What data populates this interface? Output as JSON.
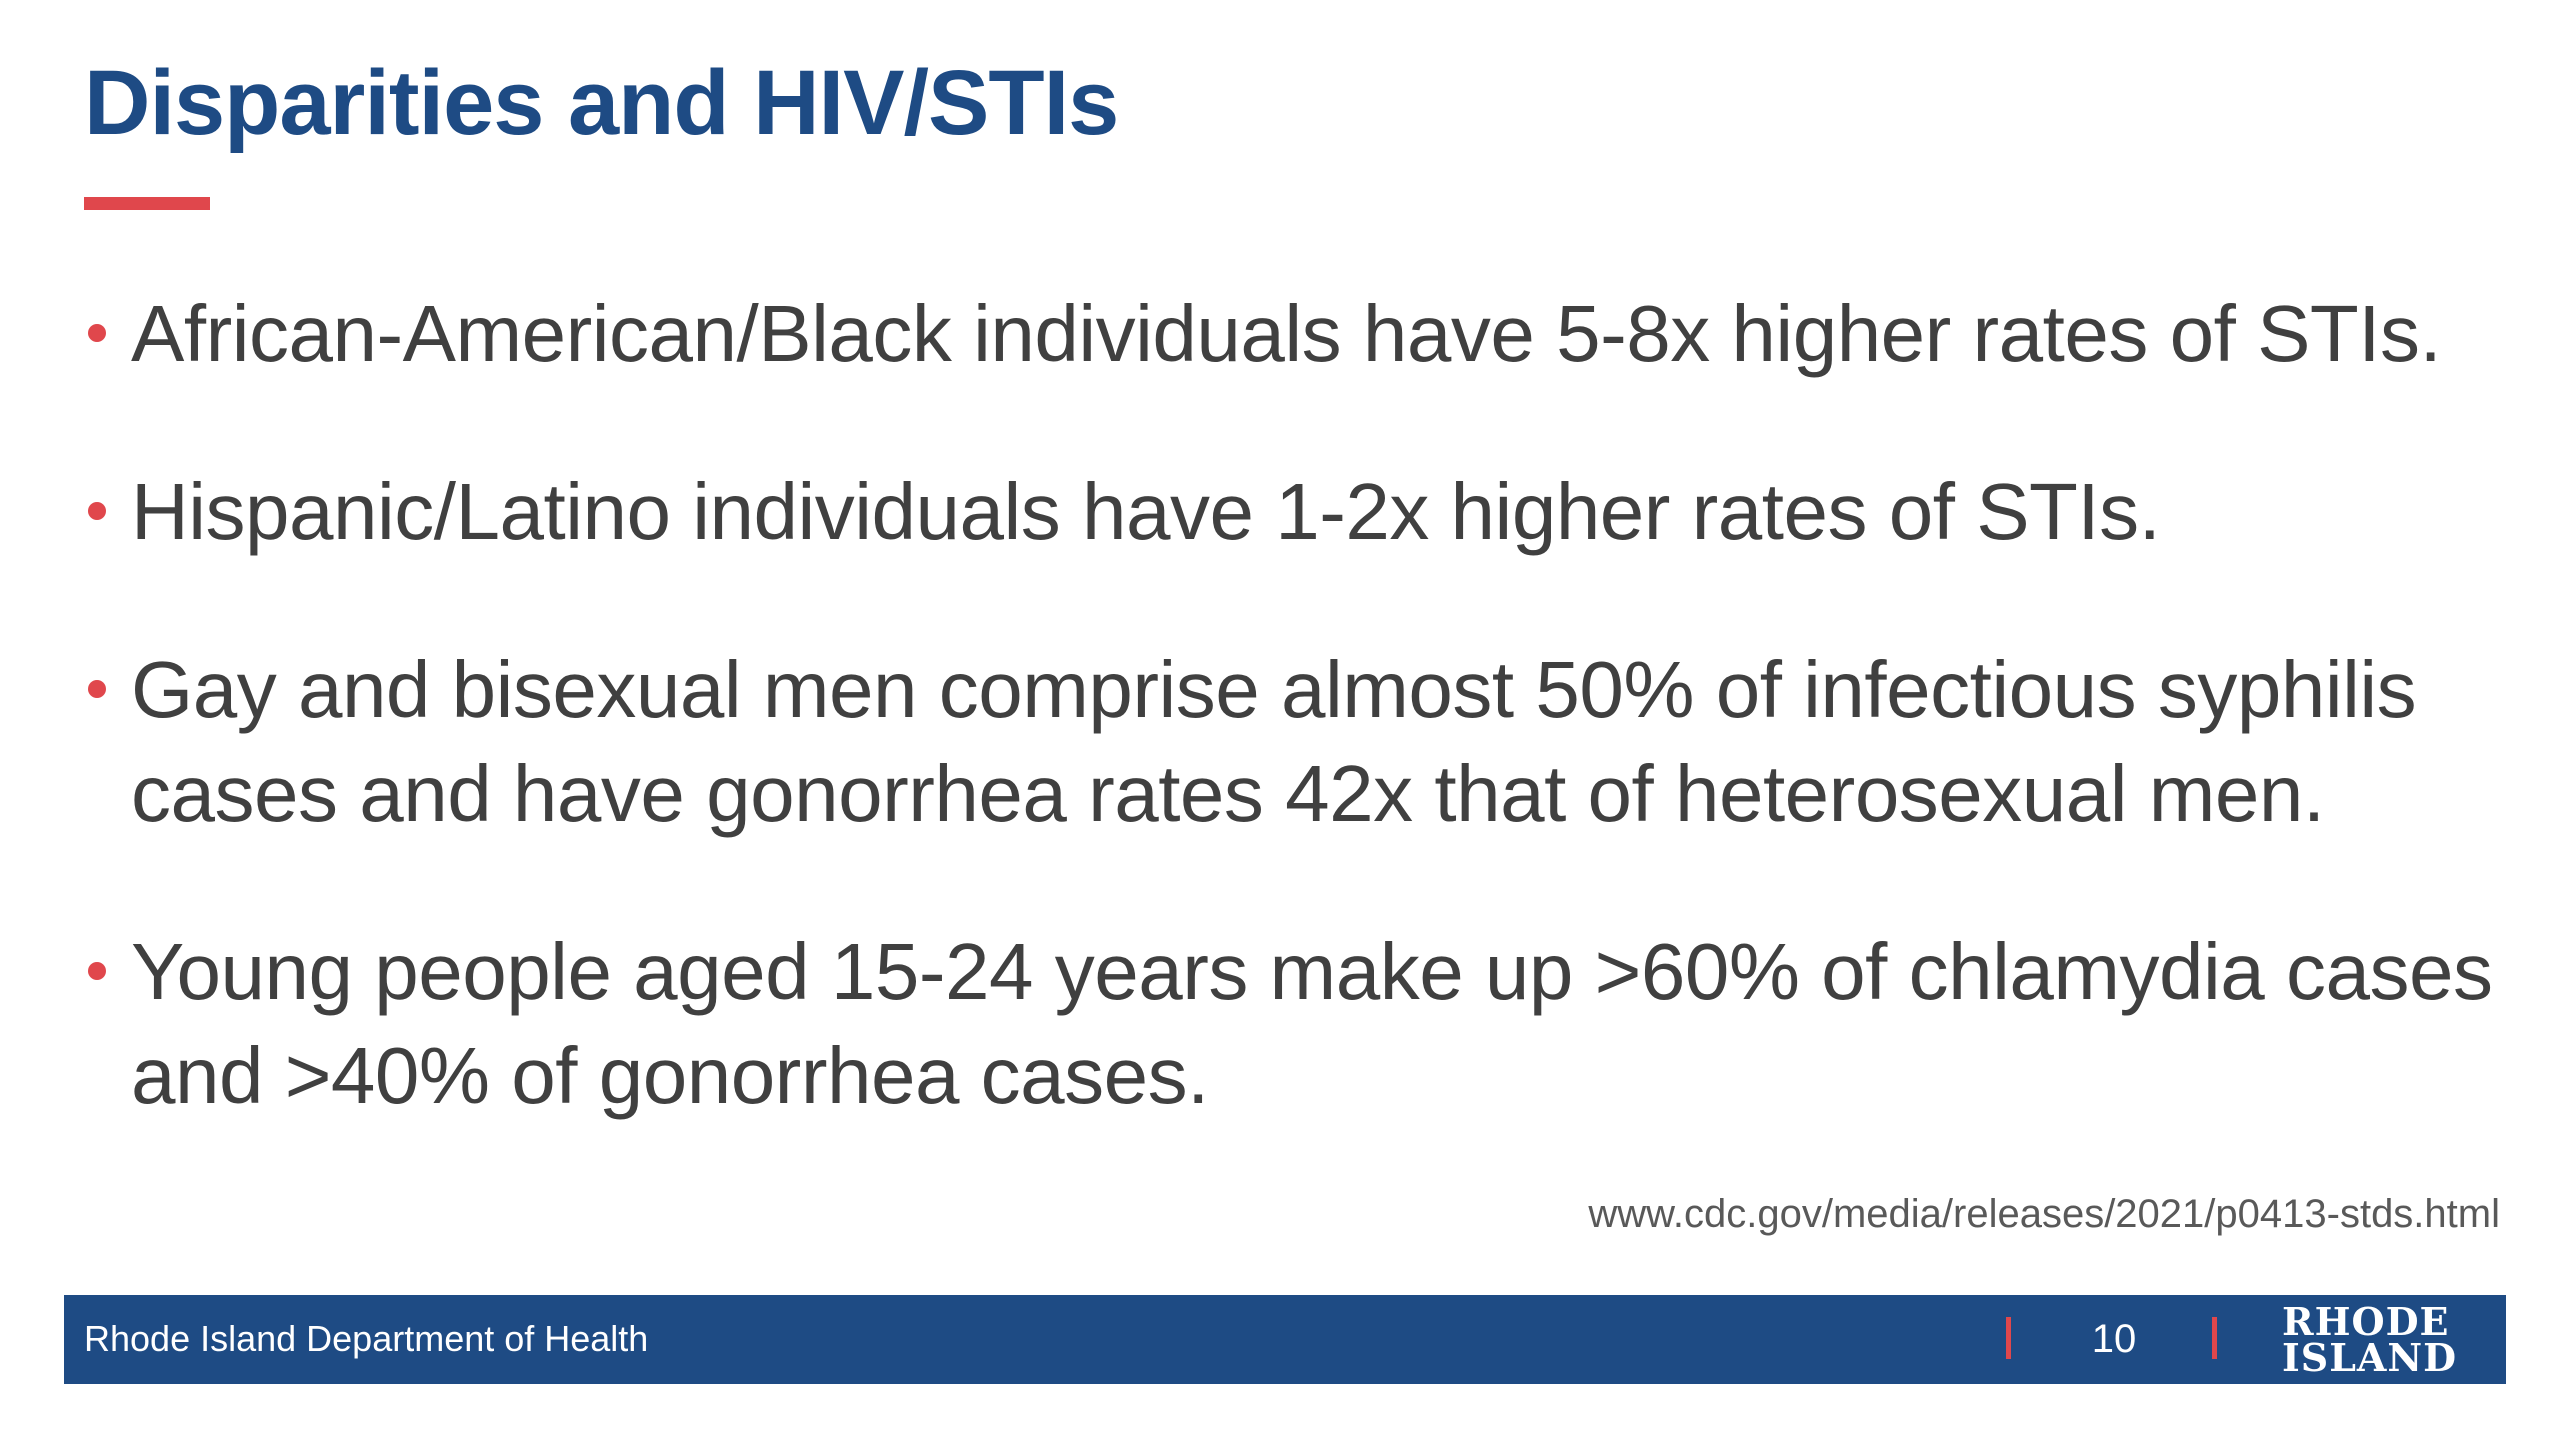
{
  "slide": {
    "title": "Disparities and HIV/STIs",
    "bullets": [
      "African-American/Black individuals have 5-8x higher rates of STIs.",
      "Hispanic/Latino individuals have 1-2x higher rates of STIs.",
      "Gay and bisexual men comprise almost 50% of infectious syphilis cases and have gonorrhea rates 42x that of heterosexual men.",
      "Young people aged 15-24 years make up >60% of chlamydia cases and >40% of gonorrhea cases."
    ],
    "source": "www.cdc.gov/media/releases/2021/p0413-stds.html"
  },
  "footer": {
    "organization": "Rhode Island Department of Health",
    "page_number": "10",
    "logo_line1": "RHODE",
    "logo_line2": "ISLAND"
  },
  "colors": {
    "brand_blue": "#1e4b84",
    "accent_red": "#e0474c",
    "body_text": "#404040"
  }
}
